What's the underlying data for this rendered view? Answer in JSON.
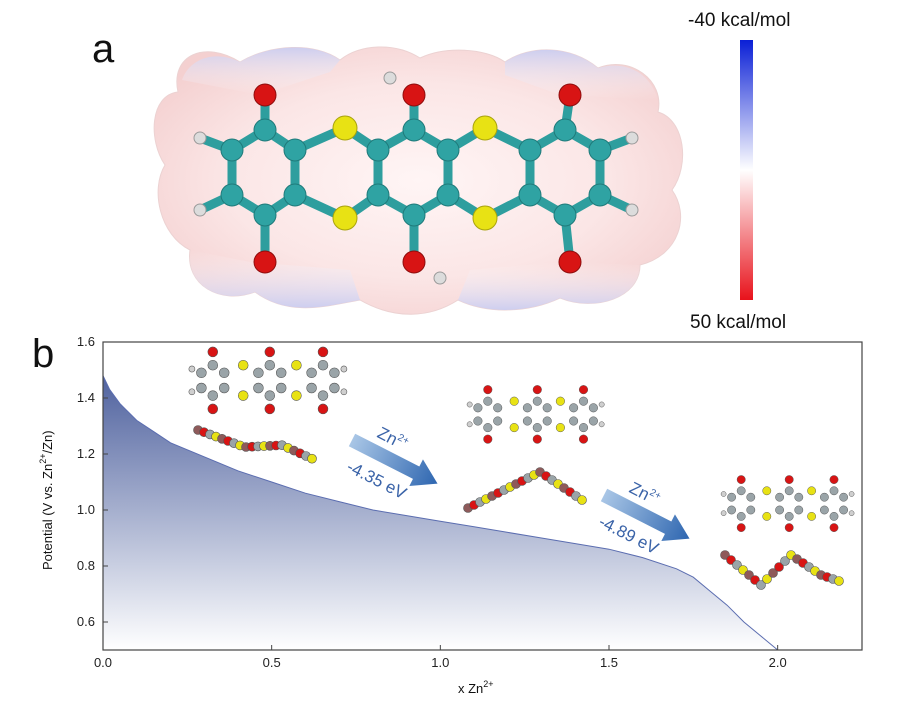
{
  "panels": {
    "a_label": "a",
    "b_label": "b"
  },
  "colorbar": {
    "top_label": "-40 kcal/mol",
    "bottom_label": "50 kcal/mol",
    "top_color": "#0a1fd6",
    "middle_color": "#ffffff",
    "bottom_color": "#e8121b"
  },
  "atom_colors": {
    "carbon": "#2fa3a3",
    "oxygen": "#d81414",
    "sulfur": "#e8e214",
    "hydrogen": "#dcdcdc",
    "zinc": "#7b8a8f"
  },
  "reactions": [
    {
      "ion": "Zn",
      "charge": "2+",
      "energy": "-4.35 eV"
    },
    {
      "ion": "Zn",
      "charge": "2+",
      "energy": "-4.89 eV"
    }
  ],
  "chart_data": {
    "type": "area",
    "xlabel_main": "x Zn",
    "xlabel_sup": "2+",
    "ylabel_main": "Potential (V vs. Zn",
    "ylabel_sup": "2+",
    "ylabel_end": "/Zn)",
    "xlim": [
      0.0,
      2.25
    ],
    "ylim": [
      0.5,
      1.6
    ],
    "xticks": [
      "0.0",
      "0.5",
      "1.0",
      "1.5",
      "2.0"
    ],
    "yticks": [
      "0.6",
      "0.8",
      "1.0",
      "1.2",
      "1.4",
      "1.6"
    ],
    "fill_color": "#3a4f93",
    "series": [
      {
        "x": [
          0.0,
          0.02,
          0.05,
          0.1,
          0.15,
          0.2,
          0.3,
          0.4,
          0.5,
          0.6,
          0.7,
          0.8,
          0.9,
          1.0,
          1.1,
          1.2,
          1.3,
          1.4,
          1.5,
          1.6,
          1.7,
          1.75,
          1.8,
          1.85,
          1.9,
          1.95,
          2.0
        ],
        "y": [
          1.48,
          1.43,
          1.38,
          1.32,
          1.28,
          1.24,
          1.19,
          1.14,
          1.1,
          1.06,
          1.03,
          1.0,
          0.98,
          0.96,
          0.94,
          0.92,
          0.9,
          0.88,
          0.86,
          0.83,
          0.79,
          0.76,
          0.71,
          0.66,
          0.6,
          0.55,
          0.5
        ]
      }
    ]
  }
}
